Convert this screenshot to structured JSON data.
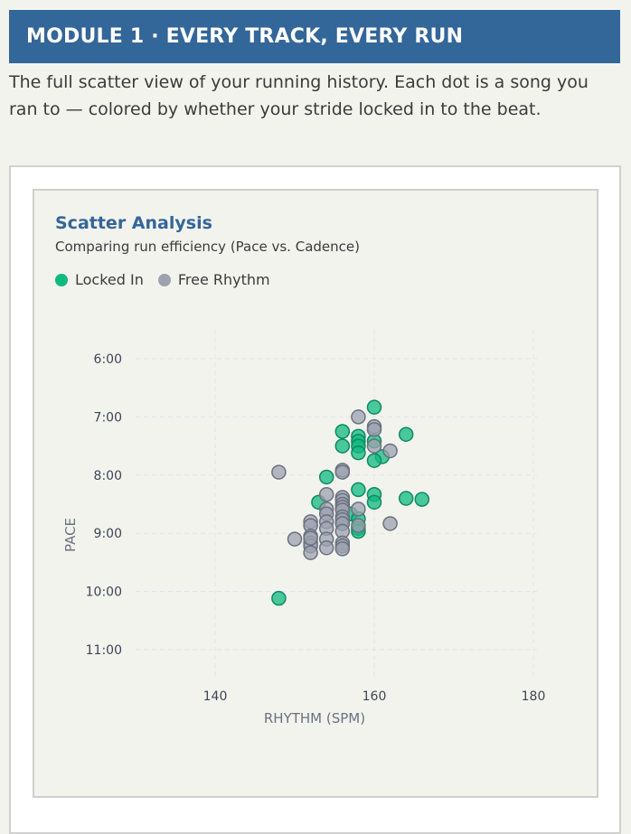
{
  "module": {
    "title": "MODULE 1 · EVERY TRACK, EVERY RUN",
    "description": "The full scatter view of your running history. Each dot is a song you ran to — colored by whether your stride locked in to the beat."
  },
  "card": {
    "title": "Scatter Analysis",
    "subtitle": "Comparing run efficiency (Pace vs. Cadence)"
  },
  "legend": [
    {
      "label": "Locked In",
      "color": "#10b981"
    },
    {
      "label": "Free Rhythm",
      "color": "#9ca3af"
    }
  ],
  "colors": {
    "header_bg": "#336699",
    "locked_in": "#10b981",
    "locked_in_stroke": "#0e8a5f",
    "free_rhythm": "#9ca3af",
    "free_rhythm_stroke": "#6b7080",
    "grid": "#e3e3ea"
  },
  "chart_data": {
    "type": "scatter",
    "title": "Scatter Analysis",
    "subtitle": "Comparing run efficiency (Pace vs. Cadence)",
    "xlabel": "RHYTHM (SPM)",
    "ylabel": "PACE",
    "xlim": [
      130,
      182
    ],
    "ylim_minutes": [
      5.5,
      11.6
    ],
    "y_reversed": true,
    "x_ticks": [
      140,
      160,
      180
    ],
    "y_ticks": [
      "6:00",
      "7:00",
      "8:00",
      "9:00",
      "10:00",
      "11:00"
    ],
    "grid": true,
    "legend_position": "top-left",
    "series": [
      {
        "name": "Locked In",
        "color": "#10b981",
        "points": [
          [
            160,
            "6:50"
          ],
          [
            156,
            "7:15"
          ],
          [
            158,
            "7:20"
          ],
          [
            158,
            "7:25"
          ],
          [
            158,
            "7:30"
          ],
          [
            160,
            "7:25"
          ],
          [
            164,
            "7:18"
          ],
          [
            156,
            "7:30"
          ],
          [
            158,
            "7:37"
          ],
          [
            161,
            "7:41"
          ],
          [
            160,
            "7:45"
          ],
          [
            154,
            "8:02"
          ],
          [
            158,
            "8:15"
          ],
          [
            160,
            "8:20"
          ],
          [
            160,
            "8:28"
          ],
          [
            164,
            "8:24"
          ],
          [
            166,
            "8:25"
          ],
          [
            153,
            "8:28"
          ],
          [
            157,
            "8:40"
          ],
          [
            158,
            "8:45"
          ],
          [
            158,
            "8:55"
          ],
          [
            158,
            "8:58"
          ],
          [
            156,
            "8:50"
          ],
          [
            148,
            "10:07"
          ]
        ]
      },
      {
        "name": "Free Rhythm",
        "color": "#9ca3af",
        "points": [
          [
            158,
            "7:00"
          ],
          [
            160,
            "7:10"
          ],
          [
            160,
            "7:13"
          ],
          [
            160,
            "7:30"
          ],
          [
            162,
            "7:35"
          ],
          [
            156,
            "7:55"
          ],
          [
            156,
            "7:57"
          ],
          [
            148,
            "7:57"
          ],
          [
            154,
            "8:20"
          ],
          [
            156,
            "8:23"
          ],
          [
            156,
            "8:26"
          ],
          [
            156,
            "8:30"
          ],
          [
            156,
            "8:33"
          ],
          [
            156,
            "8:36"
          ],
          [
            154,
            "8:35"
          ],
          [
            154,
            "8:40"
          ],
          [
            158,
            "8:35"
          ],
          [
            156,
            "8:43"
          ],
          [
            156,
            "8:46"
          ],
          [
            154,
            "8:48"
          ],
          [
            156,
            "8:50"
          ],
          [
            158,
            "8:52"
          ],
          [
            152,
            "8:48"
          ],
          [
            152,
            "8:52"
          ],
          [
            154,
            "8:55"
          ],
          [
            156,
            "8:58"
          ],
          [
            162,
            "8:50"
          ],
          [
            150,
            "9:06"
          ],
          [
            152,
            "9:03"
          ],
          [
            152,
            "9:10"
          ],
          [
            152,
            "9:13"
          ],
          [
            152,
            "9:20"
          ],
          [
            154,
            "9:06"
          ],
          [
            154,
            "9:15"
          ],
          [
            156,
            "9:10"
          ],
          [
            156,
            "9:13"
          ],
          [
            156,
            "9:16"
          ],
          [
            152,
            "9:05"
          ]
        ]
      }
    ]
  }
}
